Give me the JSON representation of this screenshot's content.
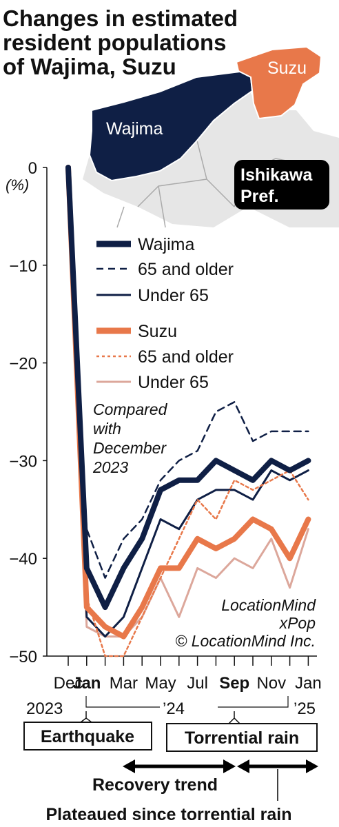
{
  "title": [
    "Changes in estimated",
    "resident populations",
    "of Wajima, Suzu"
  ],
  "map": {
    "wajima_label": "Wajima",
    "suzu_label": "Suzu",
    "pref_label": [
      "Ishikawa",
      "Pref."
    ],
    "colors": {
      "wajima": "#0f1f45",
      "suzu": "#e8784a",
      "pref": "#e6e6e6"
    }
  },
  "annotations": {
    "compared": [
      "Compared",
      "with",
      "December",
      "2023"
    ],
    "credit": [
      "LocationMind",
      "xPop",
      "© LocationMind Inc."
    ],
    "earthquake": "Earthquake",
    "torrential_rain": "Torrential rain",
    "recovery_trend": "Recovery trend",
    "plateaued": "Plateaued since torrential rain",
    "year_2023": "2023",
    "year_24": "’24",
    "year_25": "’25"
  },
  "chart_data": {
    "type": "line",
    "ylabel": "(%)",
    "ylim": [
      -50,
      0
    ],
    "yticks": [
      "0",
      "−10",
      "−20",
      "−30",
      "−40",
      "−50"
    ],
    "x": [
      "Dec",
      "Jan",
      "Feb",
      "Mar",
      "Apr",
      "May",
      "Jun",
      "Jul",
      "Aug",
      "Sep",
      "Oct",
      "Nov",
      "Dec",
      "Jan"
    ],
    "xtick_labels": [
      {
        "label": "Dec",
        "bold": false
      },
      {
        "label": "Jan",
        "bold": true
      },
      {
        "label": "",
        "bold": false
      },
      {
        "label": "Mar",
        "bold": false
      },
      {
        "label": "",
        "bold": false
      },
      {
        "label": "May",
        "bold": false
      },
      {
        "label": "",
        "bold": false
      },
      {
        "label": "Jul",
        "bold": false
      },
      {
        "label": "",
        "bold": false
      },
      {
        "label": "Sep",
        "bold": true
      },
      {
        "label": "",
        "bold": false
      },
      {
        "label": "Nov",
        "bold": false
      },
      {
        "label": "",
        "bold": false
      },
      {
        "label": "Jan",
        "bold": false
      }
    ],
    "series": [
      {
        "name": "Wajima",
        "color": "#0f1f45",
        "style": "thick",
        "values": [
          0,
          -41,
          -45,
          -41,
          -38,
          -33,
          -32,
          -32,
          -30,
          -31,
          -32,
          -30,
          -31,
          -30
        ]
      },
      {
        "name": "65 and older",
        "color": "#0f1f45",
        "style": "dashed",
        "values": [
          0,
          -37,
          -42,
          -38,
          -36,
          -32,
          -30,
          -29,
          -25,
          -24,
          -28,
          -27,
          -27,
          -27
        ]
      },
      {
        "name": "Under 65",
        "color": "#0f1f45",
        "style": "thin",
        "values": [
          0,
          -46,
          -48,
          -46,
          -41,
          -36,
          -37,
          -34,
          -33,
          -33,
          -34,
          -31,
          -32,
          -31
        ]
      },
      {
        "name": "Suzu",
        "color": "#e8784a",
        "style": "thick",
        "values": [
          0,
          -45,
          -47,
          -48,
          -45,
          -41,
          -41,
          -38,
          -39,
          -38,
          -36,
          -37,
          -40,
          -36
        ]
      },
      {
        "name": "65 and older",
        "color": "#e8784a",
        "style": "dotted",
        "values": [
          0,
          -44,
          -50,
          -50,
          -46,
          -42,
          -38,
          -34,
          -36,
          -32,
          -33,
          -32,
          -31,
          -34
        ]
      },
      {
        "name": "Under 65",
        "color": "#dca79b",
        "style": "thin",
        "values": [
          0,
          -47,
          -48,
          -48,
          -46,
          -42,
          -46,
          -41,
          -42,
          -40,
          -41,
          -38,
          -43,
          -37
        ]
      }
    ]
  }
}
